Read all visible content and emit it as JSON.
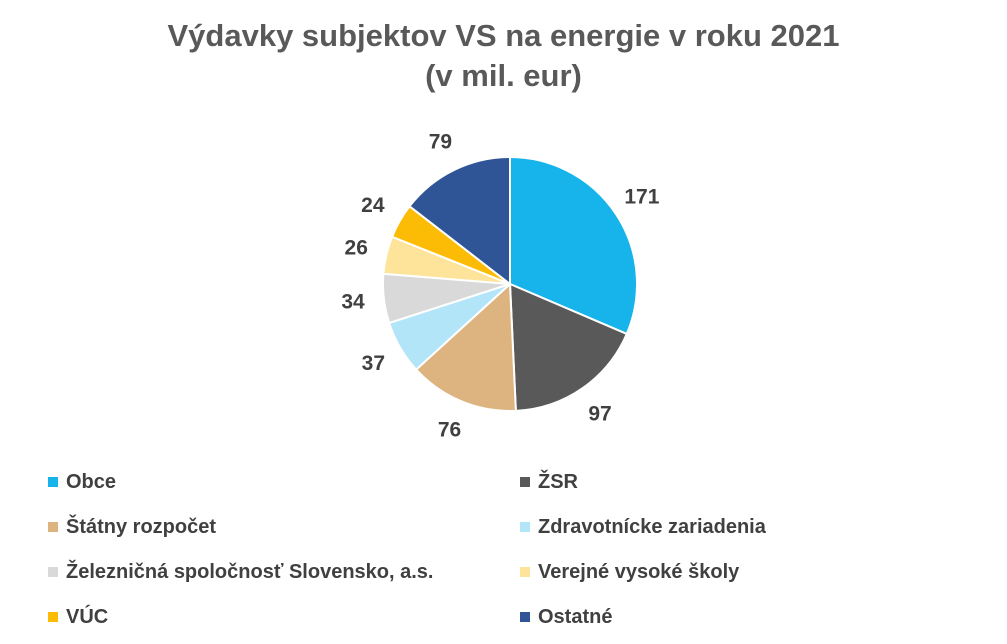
{
  "chart_data": {
    "type": "pie",
    "title": "Výdavky subjektov VS na energie v roku 2021",
    "subtitle": "(v  mil. eur)",
    "categories": [
      "Obce",
      "ŽSR",
      "Štátny rozpočet",
      "Zdravotnícke zariadenia",
      "Železničná spoločnosť Slovensko, a.s.",
      "Verejné vysoké školy",
      "VÚC",
      "Ostatné"
    ],
    "values": [
      171,
      97,
      76,
      37,
      34,
      26,
      24,
      79
    ],
    "colors": [
      "#16B4EA",
      "#595959",
      "#DDB47F",
      "#B3E5F8",
      "#D9D9D9",
      "#FDE49A",
      "#FCBC05",
      "#2F5597"
    ],
    "legend_position": "bottom"
  }
}
